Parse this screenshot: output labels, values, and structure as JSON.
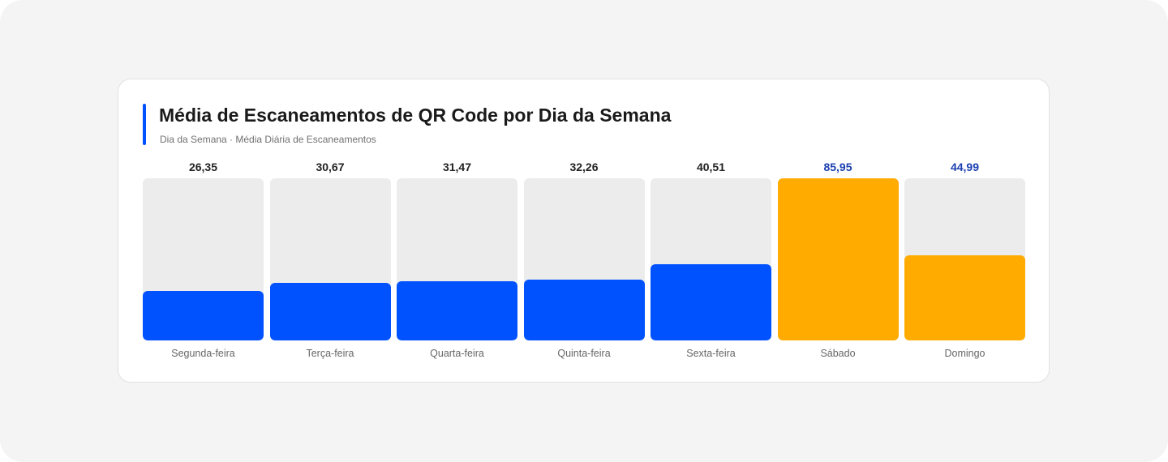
{
  "colors": {
    "background": "#f4f4f4",
    "card": "#ffffff",
    "accent": "#0052ff",
    "highlight": "#ffab00",
    "track": "#ececec",
    "highlight_value_text": "#1a3fb0",
    "value_text": "#222222"
  },
  "chart_data": {
    "type": "bar",
    "title": "Média de Escaneamentos de QR Code por Dia da Semana",
    "subtitle": "Dia da Semana · Média Diária de Escaneamentos",
    "categories": [
      "Segunda-feira",
      "Terça-feira",
      "Quarta-feira",
      "Quinta-feira",
      "Sexta-feira",
      "Sábado",
      "Domingo"
    ],
    "values": [
      26.35,
      30.67,
      31.47,
      32.26,
      40.51,
      85.95,
      44.99
    ],
    "value_labels": [
      "26,35",
      "30,67",
      "31,47",
      "32,26",
      "40,51",
      "85,95",
      "44,99"
    ],
    "highlighted": [
      false,
      false,
      false,
      false,
      false,
      true,
      true
    ],
    "ylim": [
      0,
      85.95
    ],
    "grid": false,
    "legend": "none"
  }
}
